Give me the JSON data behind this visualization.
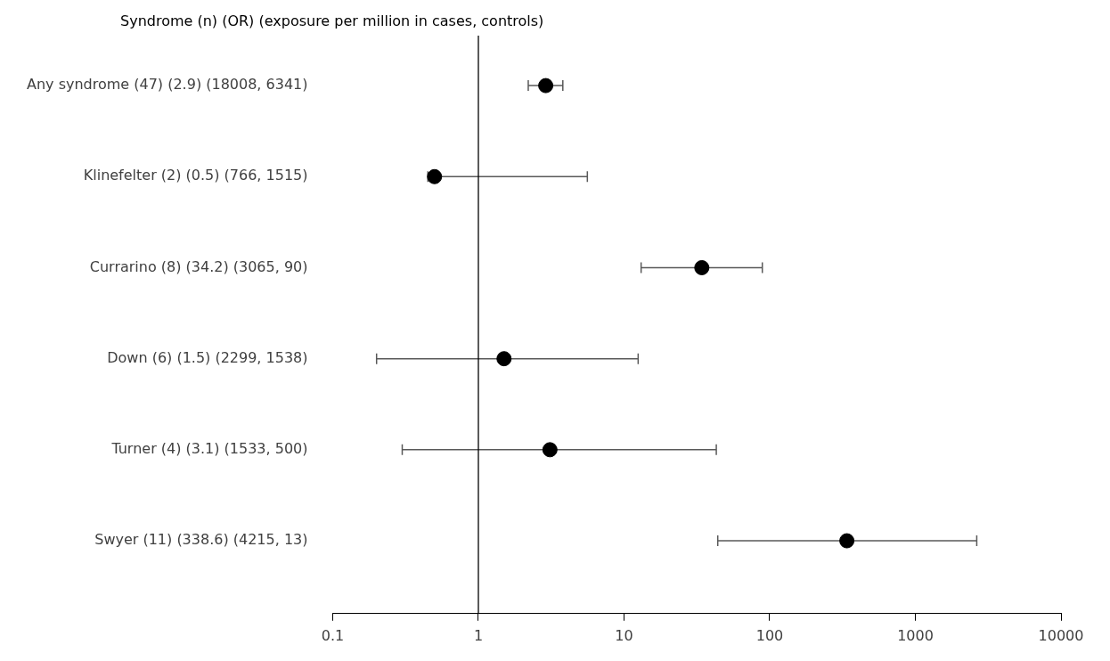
{
  "chart_data": {
    "type": "scatter",
    "title": "Syndrome (n) (OR) (exposure per million in cases, controls)",
    "orientation": "horizontal",
    "log": "x",
    "marker": "circle",
    "grid": false,
    "legend": false,
    "categories": [
      "Any syndrome (47) (2.9) (18008, 6341)",
      "Klinefelter (2) (0.5) (766, 1515)",
      "Currarino (8) (34.2) (3065, 90)",
      "Down (6) (1.5) (2299, 1538)",
      "Turner (4) (3.1) (1533, 500)",
      "Swyer (11) (338.6) (4215, 13)"
    ],
    "series": [
      {
        "color": "#000000",
        "values": [
          2.9,
          0.5,
          34.2,
          1.5,
          3.1,
          338.6
        ],
        "errors": [
          [
            2.2,
            3.8
          ],
          [
            0.45,
            5.6
          ],
          [
            13.1,
            89
          ],
          [
            0.2,
            12.5
          ],
          [
            0.3,
            43
          ],
          [
            44,
            2640
          ]
        ]
      }
    ],
    "xlim": [
      0.1,
      10000
    ],
    "xticks": [
      0.1,
      1,
      10,
      100,
      1000,
      10000
    ],
    "ref_lines": [
      {
        "axis": "x",
        "value": 1,
        "color": "#000000"
      }
    ]
  }
}
